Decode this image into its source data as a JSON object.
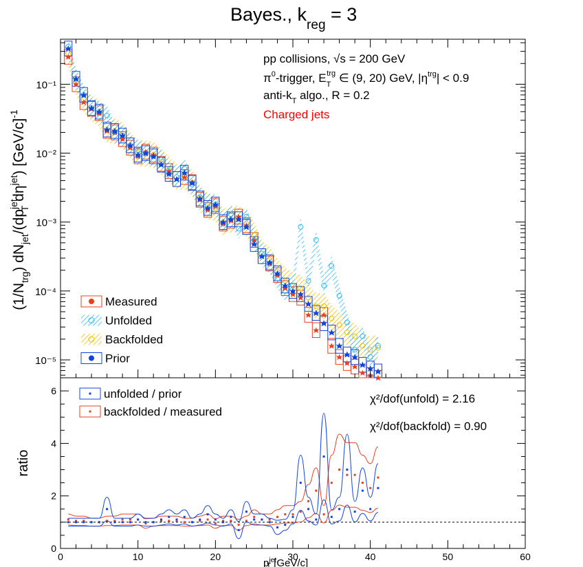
{
  "title": {
    "main": "Bayes., k",
    "sub": "reg",
    "tail": " = 3"
  },
  "annotations": {
    "line1": "pp collisions,  √s = 200 GeV",
    "line2_a": "π",
    "line2_b": "0",
    "line2_c": "-trigger, E",
    "line2_d": "T",
    "line2_e": "trg",
    "line2_f": " ∈ (9, 20) GeV, |η",
    "line2_g": "trg",
    "line2_h": "| < 0.9",
    "line3_a": "anti-k",
    "line3_b": "T",
    "line3_c": " algo., R = 0.2",
    "line4": "Charged jets"
  },
  "colors": {
    "measured": "#e8401c",
    "unfolded": "#33bbee",
    "backfolded": "#f0c000",
    "prior": "#1144dd",
    "red_label": "#ff0000"
  },
  "top_axis": {
    "ylabel": "(1/N_trg) dN_jet/(dp_T^jet dη^jet) [GeV/c]^-1",
    "ytick_labels": [
      "10⁻¹",
      "10⁻²",
      "10⁻³",
      "10⁻⁴",
      "10⁻⁵"
    ],
    "ylim": [
      5.5e-06,
      0.45
    ],
    "log": true
  },
  "bottom_axis": {
    "ylabel": "ratio",
    "xlabel": "p_T^jet [GeV/c]",
    "xtick_labels": [
      "0",
      "10",
      "20",
      "30",
      "40",
      "50",
      "60"
    ],
    "ytick_labels": [
      "0",
      "2",
      "4",
      "6"
    ],
    "xlim": [
      0,
      60
    ],
    "ylim": [
      0,
      6.5
    ]
  },
  "legend_top": [
    "Measured",
    "Unfolded",
    "Backfolded",
    "Prior"
  ],
  "legend_bottom": [
    "unfolded / prior",
    "backfolded / measured"
  ],
  "chi2": {
    "unfold": "χ²/dof(unfold) = 2.16",
    "backfold": "χ²/dof(backfold) = 0.90"
  },
  "chart_data": {
    "type": "scatter",
    "x": [
      1,
      2,
      3,
      4,
      5,
      6,
      7,
      8,
      9,
      10,
      11,
      12,
      13,
      14,
      15,
      16,
      17,
      18,
      19,
      20,
      21,
      22,
      23,
      24,
      25,
      26,
      27,
      28,
      29,
      30,
      31,
      32,
      33,
      34,
      35,
      36,
      37,
      38,
      39,
      40,
      41
    ],
    "series": [
      {
        "name": "Measured",
        "values": [
          0.25,
          0.1,
          0.055,
          0.044,
          0.038,
          0.021,
          0.02,
          0.016,
          0.012,
          0.009,
          0.0105,
          0.0095,
          0.007,
          0.0055,
          0.0042,
          0.0045,
          0.0038,
          0.0021,
          0.0015,
          0.0017,
          0.00095,
          0.00105,
          0.0012,
          0.0009,
          0.00055,
          0.00032,
          0.00025,
          0.00017,
          0.00011,
          9e-05,
          8e-05,
          4.5e-05,
          2.7e-05,
          4.5e-05,
          1.6e-05,
          1.1e-05,
          9e-06,
          8e-06,
          6.5e-06,
          6e-06,
          5.5e-06
        ]
      },
      {
        "name": "Unfolded",
        "values": [
          0.35,
          0.12,
          0.07,
          0.045,
          0.04,
          0.035,
          0.02,
          0.018,
          0.013,
          0.011,
          0.01,
          0.009,
          0.008,
          0.0055,
          0.0045,
          0.006,
          0.0035,
          0.0023,
          0.0018,
          0.0018,
          0.00095,
          0.0013,
          0.0008,
          0.0012,
          0.00055,
          0.00035,
          0.00025,
          0.00015,
          0.0001,
          0.00012,
          0.00085,
          0.00014,
          0.00055,
          0.00012,
          0.00023,
          8.5e-05,
          3.5e-05,
          1.4e-05,
          2.2e-05,
          1.1e-05,
          1.6e-05
        ]
      },
      {
        "name": "Backfolded",
        "values": [
          0.28,
          0.11,
          0.06,
          0.045,
          0.038,
          0.022,
          0.021,
          0.018,
          0.013,
          0.01,
          0.0098,
          0.0095,
          0.0075,
          0.0058,
          0.0045,
          0.0046,
          0.0037,
          0.0022,
          0.0017,
          0.0016,
          0.001,
          0.0011,
          0.0011,
          0.00095,
          0.00065,
          0.00035,
          0.00028,
          0.00019,
          0.00014,
          0.00012,
          0.00011,
          8e-05,
          6e-05,
          6e-05,
          4e-05,
          3.2e-05,
          2.5e-05,
          2.2e-05,
          1.6e-05,
          1.4e-05,
          1.5e-05
        ]
      },
      {
        "name": "Prior",
        "values": [
          0.33,
          0.12,
          0.07,
          0.045,
          0.04,
          0.022,
          0.021,
          0.018,
          0.013,
          0.0095,
          0.01,
          0.009,
          0.0068,
          0.005,
          0.0042,
          0.0052,
          0.0037,
          0.0022,
          0.0016,
          0.0018,
          0.001,
          0.0011,
          0.0011,
          0.00085,
          0.00048,
          0.00032,
          0.00026,
          0.00018,
          0.00012,
          0.0001,
          9e-05,
          6.5e-05,
          4.8e-05,
          3.4e-05,
          2.5e-05,
          1.6e-05,
          1.2e-05,
          1.1e-05,
          8.5e-06,
          7.5e-06,
          6.8e-06
        ]
      }
    ],
    "ratio_series": [
      {
        "name": "unfolded / prior",
        "values": [
          1,
          1,
          1,
          1,
          1,
          1.5,
          1,
          1,
          1,
          1.1,
          1,
          1,
          1.1,
          1.2,
          1.1,
          1.2,
          1,
          1.1,
          1.3,
          1.1,
          1,
          1.2,
          0.7,
          1.4,
          1.1,
          1.1,
          1,
          0.8,
          0.9,
          1.2,
          2.5,
          1.5,
          1.1,
          3.5,
          1.2,
          1.5,
          3,
          1.4,
          2.2,
          1.5,
          2.3
        ]
      },
      {
        "name": "backfolded / measured",
        "values": [
          1.1,
          1.05,
          1.05,
          1,
          1,
          1.05,
          1.05,
          1.1,
          1.1,
          1.1,
          0.95,
          1,
          1.05,
          1.05,
          1.05,
          1,
          1,
          1.05,
          1.1,
          0.95,
          1.05,
          1.05,
          0.9,
          1.05,
          1.2,
          1.1,
          1.1,
          1.2,
          1.3,
          1.3,
          1.4,
          1.8,
          2.2,
          1.3,
          2.5,
          3,
          2.8,
          2.8,
          2.5,
          2.3,
          2.7
        ]
      }
    ],
    "ylim": [
      5.5e-06,
      0.45
    ],
    "xlim": [
      0,
      60
    ],
    "ratio_ylim": [
      0,
      6.5
    ]
  }
}
